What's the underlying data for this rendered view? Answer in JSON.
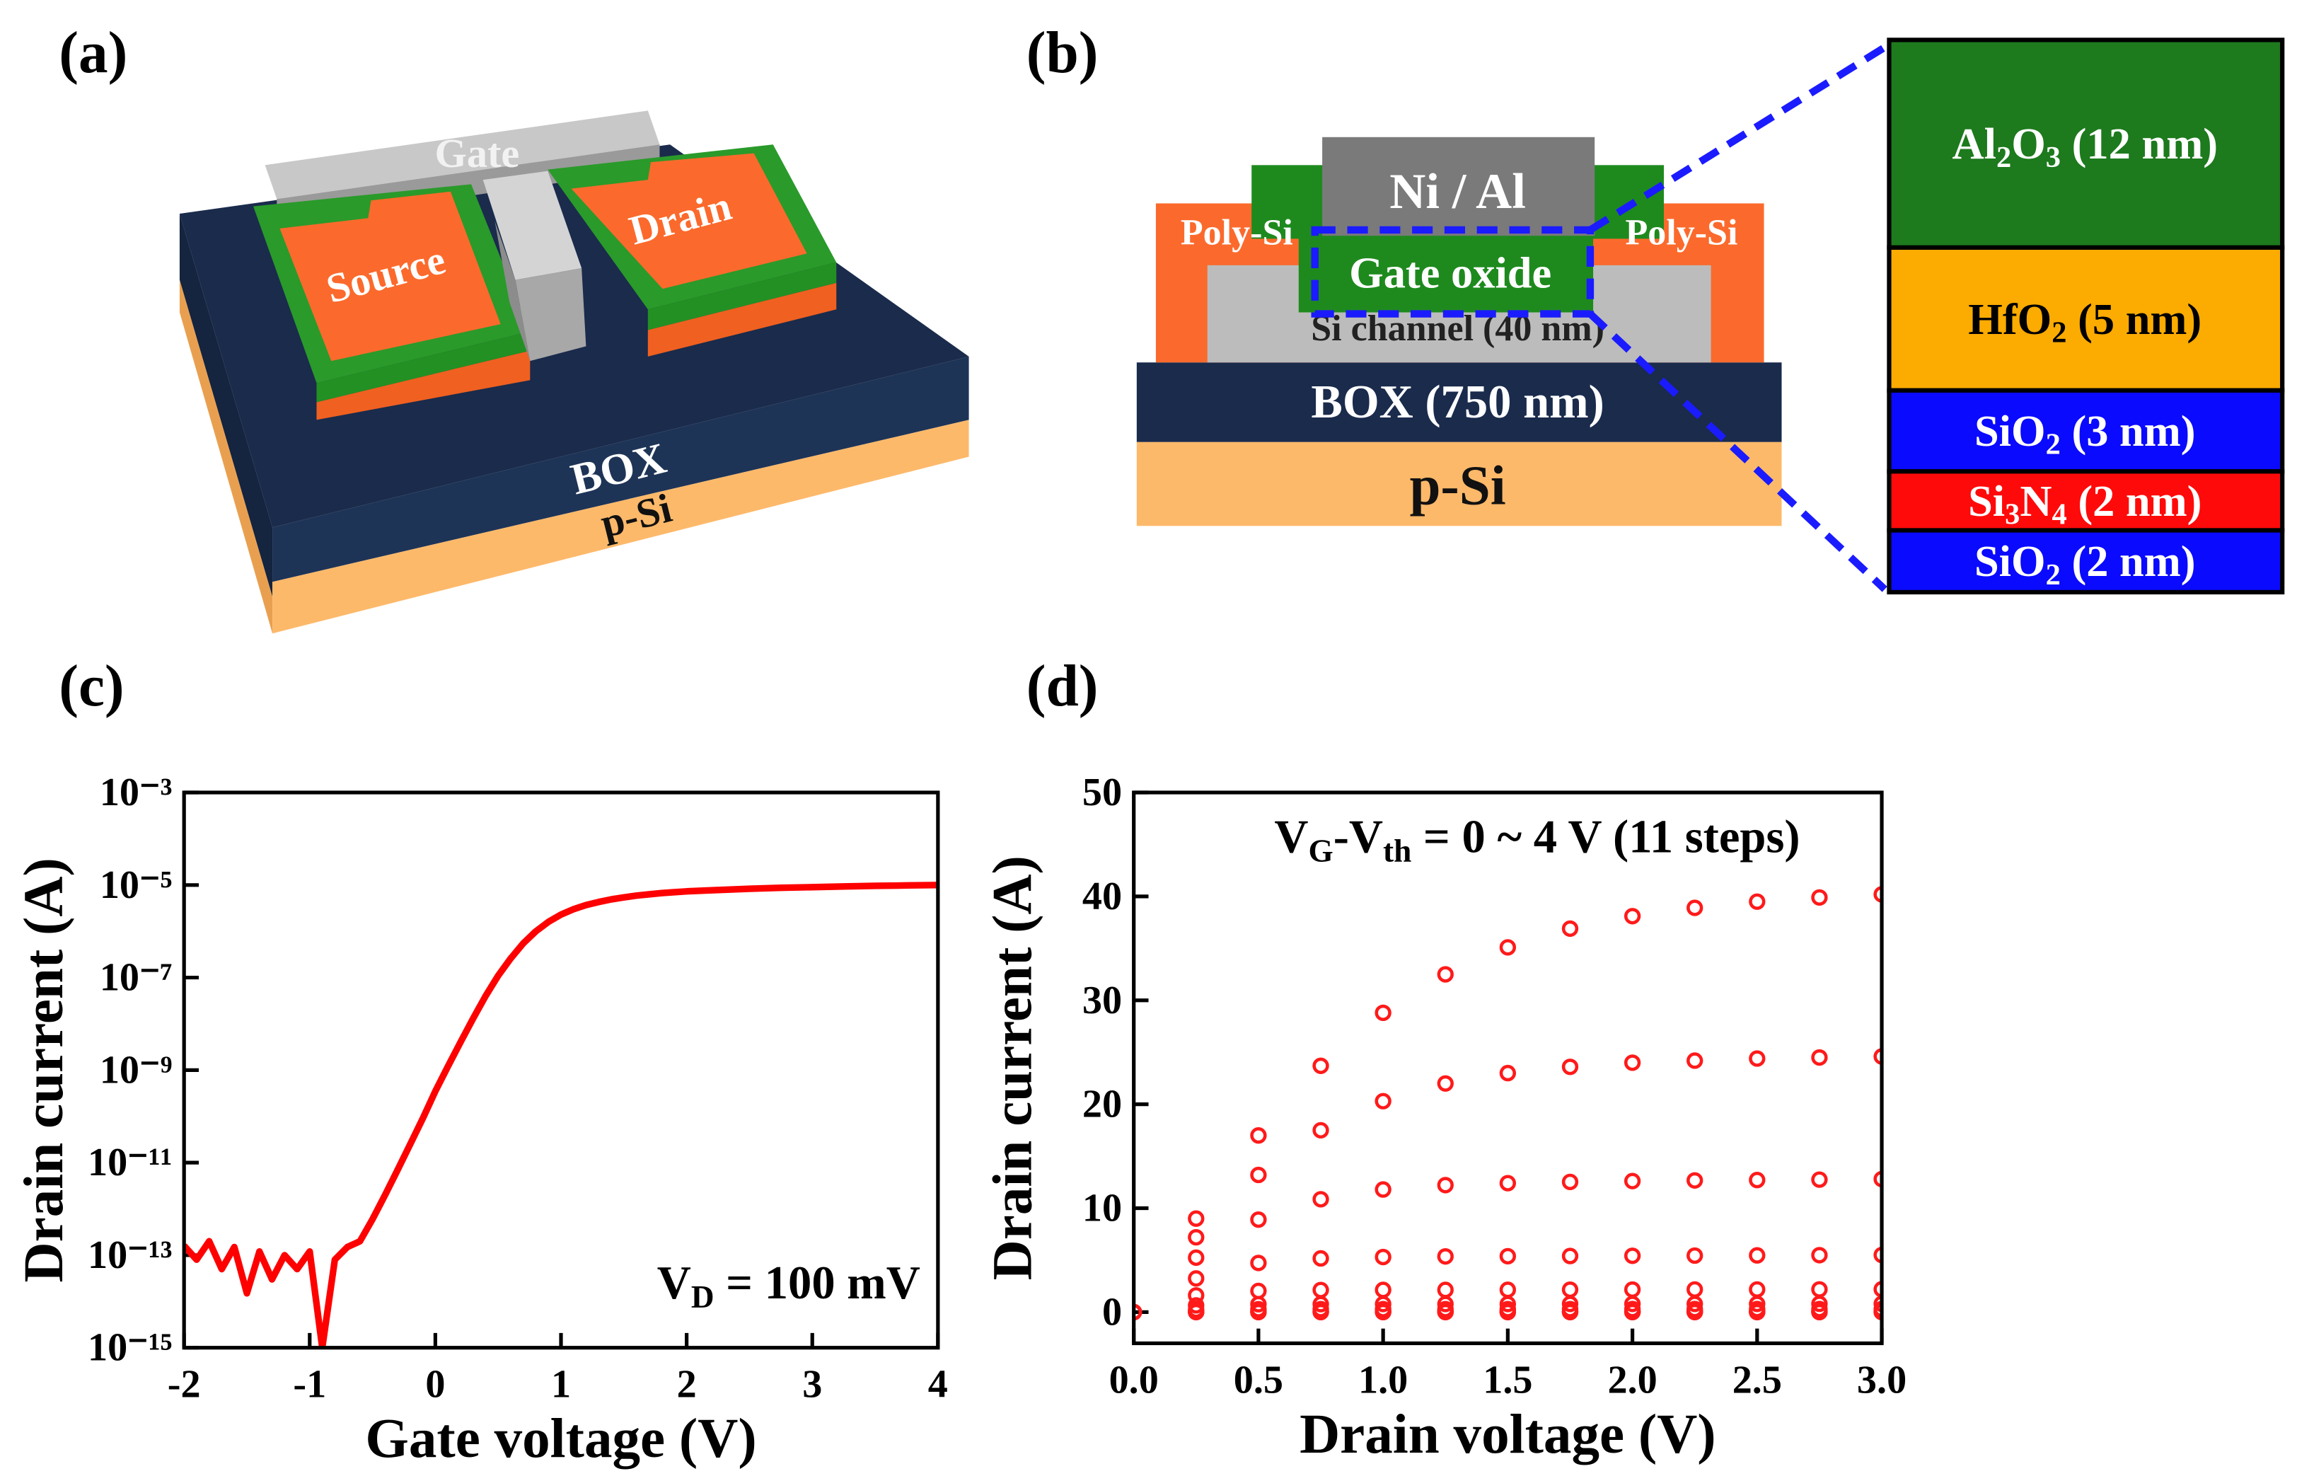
{
  "panel_labels": [
    "(a)",
    "(b)",
    "(c)",
    "(d)"
  ],
  "device_3d": {
    "gate": "Gate",
    "source": "Source",
    "drain": "Drain",
    "box": "BOX",
    "substrate": "p-Si"
  },
  "cross_section": {
    "ni_al": "Ni / Al",
    "poly_left": "Poly-Si",
    "poly_right": "Poly-Si",
    "gate_oxide": "Gate oxide",
    "channel": "Si channel (40 nm)",
    "box": "BOX (750 nm)",
    "substrate": "p-Si",
    "stack": [
      {
        "fill": "#1d7a1d",
        "text": "#ffffff",
        "label": [
          {
            "t": "Al"
          },
          {
            "t": "2",
            "sub": true
          },
          {
            "t": "O"
          },
          {
            "t": "3",
            "sub": true
          },
          {
            "t": " (12 nm)"
          }
        ]
      },
      {
        "fill": "#fcab00",
        "text": "#000000",
        "label": [
          {
            "t": "HfO"
          },
          {
            "t": "2",
            "sub": true
          },
          {
            "t": " (5 nm)"
          }
        ]
      },
      {
        "fill": "#0a0aff",
        "text": "#ffffff",
        "label": [
          {
            "t": "SiO"
          },
          {
            "t": "2",
            "sub": true
          },
          {
            "t": " (3 nm)"
          }
        ]
      },
      {
        "fill": "#ff0a0a",
        "text": "#ffffff",
        "label": [
          {
            "t": "Si"
          },
          {
            "t": "3",
            "sub": true
          },
          {
            "t": "N"
          },
          {
            "t": "4",
            "sub": true
          },
          {
            "t": " (2 nm)"
          }
        ]
      },
      {
        "fill": "#0a0aff",
        "text": "#ffffff",
        "label": [
          {
            "t": "SiO"
          },
          {
            "t": "2",
            "sub": true
          },
          {
            "t": " (2 nm)"
          }
        ]
      }
    ]
  },
  "chart_data": [
    {
      "type": "line",
      "log_y": true,
      "color": "#ff0000",
      "xlabel": "Gate voltage (V)",
      "ylabel": "Drain current (A)",
      "annotation": [
        {
          "t": "V"
        },
        {
          "t": "D",
          "sub": true
        },
        {
          "t": " = 100 mV"
        }
      ],
      "xlim": [
        -2,
        4
      ],
      "ylim": [
        1e-15,
        0.001
      ],
      "xticks": [
        -2,
        -1,
        0,
        1,
        2,
        3,
        4
      ],
      "yticks": [
        {
          "value": 0.001,
          "label": "10⁻³"
        },
        {
          "value": 1e-05,
          "label": "10⁻⁵"
        },
        {
          "value": 1e-07,
          "label": "10⁻⁷"
        },
        {
          "value": 1e-09,
          "label": "10⁻⁹"
        },
        {
          "value": 1e-11,
          "label": "10⁻¹¹"
        },
        {
          "value": 1e-13,
          "label": "10⁻¹³"
        },
        {
          "value": 1e-15,
          "label": "10⁻¹⁵"
        }
      ],
      "x": [
        -2,
        -1.9,
        -1.8,
        -1.7,
        -1.6,
        -1.5,
        -1.4,
        -1.3,
        -1.2,
        -1.1,
        -1,
        -0.9,
        -0.8,
        -0.7,
        -0.6,
        -0.5,
        -0.4,
        -0.3,
        -0.2,
        -0.1,
        0,
        0.1,
        0.2,
        0.3,
        0.4,
        0.5,
        0.6,
        0.7,
        0.8,
        0.9,
        1,
        1.1,
        1.2,
        1.3,
        1.4,
        1.5,
        1.6,
        1.7,
        1.8,
        1.9,
        2,
        2.25,
        2.5,
        2.75,
        3,
        3.25,
        3.5,
        3.75,
        4
      ],
      "values": [
        1.6e-13,
        8e-14,
        2e-13,
        5e-14,
        1.5e-13,
        1.5e-14,
        1.2e-13,
        3e-14,
        1e-13,
        5e-14,
        1.2e-13,
        1e-15,
        8e-14,
        1.5e-13,
        2e-13,
        6e-13,
        2e-12,
        7e-12,
        2.5e-11,
        9e-11,
        3.5e-10,
        1.2e-09,
        4e-09,
        1.3e-08,
        4e-08,
        1.1e-07,
        2.6e-07,
        5.5e-07,
        1e-06,
        1.6e-06,
        2.3e-06,
        3e-06,
        3.7e-06,
        4.3e-06,
        4.9e-06,
        5.4e-06,
        5.9e-06,
        6.3e-06,
        6.7e-06,
        7e-06,
        7.3e-06,
        7.8e-06,
        8.3e-06,
        8.7e-06,
        9e-06,
        9.3e-06,
        9.6e-06,
        9.8e-06,
        1e-05
      ]
    },
    {
      "type": "scatter",
      "log_y": false,
      "xlabel": "Drain voltage (V)",
      "ylabel": "Drain current (A)",
      "annotation": [
        {
          "t": "V"
        },
        {
          "t": "G",
          "sub": true
        },
        {
          "t": "-V"
        },
        {
          "t": "th",
          "sub": true
        },
        {
          "t": " = 0 ~ 4 V (11 steps)"
        }
      ],
      "xlim": [
        0,
        3
      ],
      "ylim": [
        -3,
        50
      ],
      "xticks": [
        {
          "value": 0,
          "label": "0.0"
        },
        0.5,
        {
          "value": 1,
          "label": "1.0"
        },
        1.5,
        {
          "value": 2,
          "label": "2.0"
        },
        2.5,
        {
          "value": 3,
          "label": "3.0"
        }
      ],
      "yticks": [
        0,
        10,
        20,
        30,
        40,
        50
      ],
      "x": [
        0,
        0.25,
        0.5,
        0.75,
        1,
        1.25,
        1.5,
        1.75,
        2,
        2.25,
        2.5,
        2.75,
        3
      ],
      "series": [
        {
          "color": "#ff1a1a",
          "values": [
            0,
            9.0,
            17.0,
            23.7,
            28.8,
            32.5,
            35.1,
            36.9,
            38.1,
            38.9,
            39.5,
            39.9,
            40.2
          ]
        },
        {
          "color": "#ff1a1a",
          "values": [
            0,
            7.2,
            13.2,
            17.5,
            20.3,
            22.0,
            23.0,
            23.6,
            24.0,
            24.2,
            24.4,
            24.5,
            24.6
          ]
        },
        {
          "color": "#ff1a1a",
          "values": [
            0,
            5.24,
            8.9,
            10.86,
            11.8,
            12.22,
            12.41,
            12.53,
            12.61,
            12.67,
            12.71,
            12.75,
            12.8
          ]
        },
        {
          "color": "#ff1a1a",
          "values": [
            0,
            3.24,
            4.73,
            5.17,
            5.3,
            5.36,
            5.38,
            5.4,
            5.42,
            5.44,
            5.46,
            5.48,
            5.5
          ]
        },
        {
          "color": "#ff1a1a",
          "values": [
            0,
            1.61,
            2.04,
            2.13,
            2.14,
            2.14,
            2.15,
            2.16,
            2.17,
            2.18,
            2.18,
            2.19,
            2.2
          ]
        },
        {
          "color": "#ff1a1a",
          "values": [
            0,
            0.65,
            0.76,
            0.77,
            0.78,
            0.78,
            0.78,
            0.79,
            0.79,
            0.79,
            0.79,
            0.8,
            0.8
          ]
        },
        {
          "color": "#ff1a1a",
          "values": [
            0,
            0.24,
            0.28,
            0.29,
            0.29,
            0.29,
            0.29,
            0.29,
            0.3,
            0.3,
            0.3,
            0.3,
            0.3
          ]
        },
        {
          "color": "#ff1a1a",
          "values": [
            0,
            0.08,
            0.09,
            0.1,
            0.1,
            0.1,
            0.1,
            0.1,
            0.1,
            0.1,
            0.1,
            0.1,
            0.1
          ]
        },
        {
          "color": "#ff1a1a",
          "values": [
            0,
            0.03,
            0.04,
            0.04,
            0.04,
            0.04,
            0.04,
            0.04,
            0.04,
            0.04,
            0.04,
            0.04,
            0.04
          ]
        },
        {
          "color": "#ff1a1a",
          "values": [
            0,
            0.01,
            0.01,
            0.01,
            0.01,
            0.01,
            0.01,
            0.01,
            0.01,
            0.01,
            0.01,
            0.01,
            0.01
          ]
        },
        {
          "color": "#ff1a1a",
          "values": [
            0,
            0,
            0,
            0,
            0,
            0,
            0,
            0,
            0,
            0,
            0,
            0,
            0
          ]
        }
      ]
    }
  ]
}
